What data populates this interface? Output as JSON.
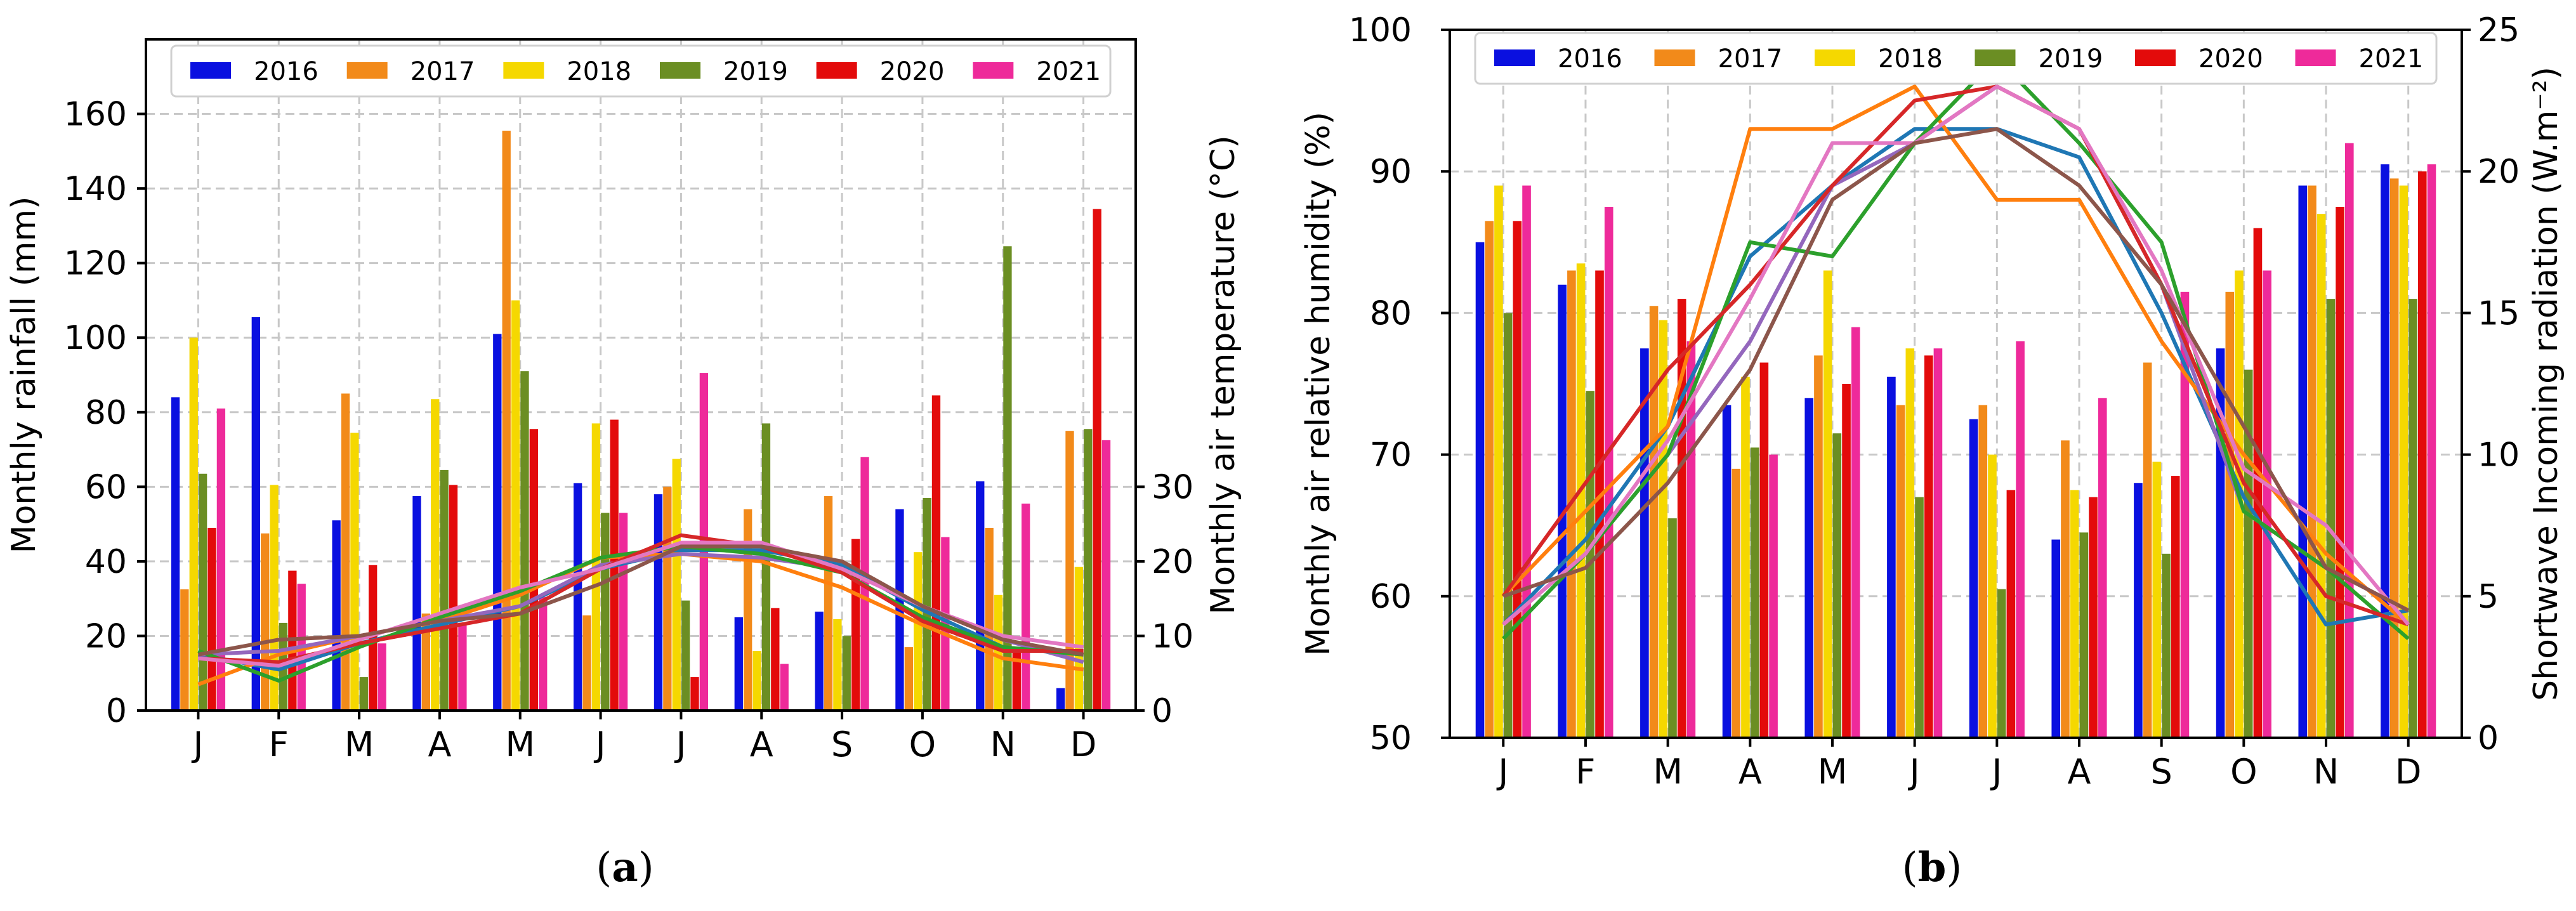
{
  "captions": {
    "a": "a",
    "b": "b"
  },
  "chart_data": [
    {
      "type": "bar",
      "id": "a",
      "categories": [
        "J",
        "F",
        "M",
        "A",
        "M",
        "J",
        "J",
        "A",
        "S",
        "O",
        "N",
        "D"
      ],
      "ylabel": "Monthly rainfall (mm)",
      "ylim": [
        0,
        180
      ],
      "yticks": [
        0,
        20,
        40,
        60,
        80,
        100,
        120,
        140,
        160
      ],
      "y2label": "Monthly air temperature (°C)",
      "y2lim": [
        0,
        90
      ],
      "y2ticks": [
        0,
        10,
        20,
        30
      ],
      "grid": true,
      "legend_position": "top",
      "colors": [
        "#0a10e0",
        "#f28a1a",
        "#f5d800",
        "#6b8e23",
        "#e30b0b",
        "#ee2a9a"
      ],
      "series": [
        {
          "name": "2016",
          "values": [
            84,
            105.5,
            51,
            57.5,
            101,
            61,
            58,
            25,
            26.5,
            54,
            61.5,
            6
          ]
        },
        {
          "name": "2017",
          "values": [
            32.5,
            47.5,
            85,
            26,
            155.5,
            25.5,
            60,
            54,
            57.5,
            17,
            49,
            75
          ]
        },
        {
          "name": "2018",
          "values": [
            100,
            60.5,
            74.5,
            83.5,
            110,
            77,
            67.5,
            16,
            24.5,
            42.5,
            31,
            38.5
          ]
        },
        {
          "name": "2019",
          "values": [
            63.5,
            23.5,
            9,
            64.5,
            91,
            53,
            29.5,
            77,
            20,
            57,
            124.5,
            75.5
          ]
        },
        {
          "name": "2020",
          "values": [
            49,
            37.5,
            39,
            60.5,
            75.5,
            78,
            9,
            27.5,
            46,
            84.5,
            17,
            134.5
          ]
        },
        {
          "name": "2021",
          "values": [
            81,
            34,
            18,
            23.5,
            30.5,
            53,
            90.5,
            12.5,
            68,
            46.5,
            55.5,
            72.5
          ]
        }
      ],
      "line_series": [
        {
          "name": "2016",
          "values": [
            7.5,
            5.5,
            9,
            11.5,
            14,
            19,
            21.5,
            21.5,
            19.5,
            13.5,
            8.5,
            7.5
          ]
        },
        {
          "name": "2017",
          "values": [
            3.5,
            7.5,
            10,
            12,
            15.5,
            20.5,
            21,
            20,
            16.5,
            11.5,
            7,
            5.5
          ]
        },
        {
          "name": "2018",
          "values": [
            7.5,
            8,
            10,
            12,
            14,
            19.5,
            21,
            20.5,
            19,
            14,
            9.5,
            6.5
          ]
        },
        {
          "name": "2019",
          "values": [
            8,
            4,
            8.5,
            12.5,
            16,
            20.5,
            22,
            21,
            18.5,
            12.5,
            8.5,
            7.5
          ]
        },
        {
          "name": "2020",
          "values": [
            7,
            6.5,
            9,
            11,
            13,
            19,
            23.5,
            22,
            18.5,
            12,
            8,
            8
          ]
        },
        {
          "name": "2021",
          "values": [
            7,
            6,
            9.5,
            13,
            16.5,
            19,
            22.5,
            22.5,
            19,
            14,
            10,
            8.5
          ]
        },
        {
          "name": "",
          "values": [
            7.5,
            9.5,
            10,
            12,
            13,
            17,
            22,
            22,
            20,
            14,
            9.5,
            7.5
          ]
        }
      ]
    },
    {
      "type": "bar",
      "id": "b",
      "categories": [
        "J",
        "F",
        "M",
        "A",
        "M",
        "J",
        "J",
        "A",
        "S",
        "O",
        "N",
        "D"
      ],
      "ylabel": "Monthly air relative humidity (%)",
      "ylim": [
        50,
        100
      ],
      "yticks": [
        50,
        60,
        70,
        80,
        90,
        100
      ],
      "y2label": "Shortwave Incoming radiation (W.m⁻²)",
      "y2lim": [
        0,
        25
      ],
      "y2ticks": [
        0,
        5,
        10,
        15,
        20,
        25
      ],
      "grid": true,
      "legend_position": "top",
      "colors": [
        "#0a10e0",
        "#f28a1a",
        "#f5d800",
        "#6b8e23",
        "#e30b0b",
        "#ee2a9a"
      ],
      "series": [
        {
          "name": "2016",
          "values": [
            85,
            82,
            77.5,
            73.5,
            74,
            75.5,
            72.5,
            64,
            68,
            77.5,
            89,
            90.5
          ]
        },
        {
          "name": "2017",
          "values": [
            86.5,
            83,
            80.5,
            69,
            77,
            73.5,
            73.5,
            71,
            76.5,
            81.5,
            89,
            89.5
          ]
        },
        {
          "name": "2018",
          "values": [
            89,
            83.5,
            79.5,
            75.5,
            83,
            77.5,
            70,
            67.5,
            69.5,
            83,
            87,
            89
          ]
        },
        {
          "name": "2019",
          "values": [
            80,
            74.5,
            65.5,
            70.5,
            71.5,
            67,
            60.5,
            64.5,
            63,
            76,
            81,
            81
          ]
        },
        {
          "name": "2020",
          "values": [
            86.5,
            83,
            81,
            76.5,
            75,
            77,
            67.5,
            67,
            68.5,
            86,
            87.5,
            90
          ]
        },
        {
          "name": "2021",
          "values": [
            89,
            87.5,
            78,
            70,
            79,
            77.5,
            78,
            74,
            81.5,
            83,
            92,
            90.5
          ]
        }
      ],
      "line_series": [
        {
          "name": "2016",
          "values": [
            4,
            7,
            11,
            17,
            19.5,
            21.5,
            21.5,
            20.5,
            15,
            8.5,
            4,
            4.5
          ]
        },
        {
          "name": "2017",
          "values": [
            5,
            8,
            11,
            21.5,
            21.5,
            23,
            19,
            19,
            14,
            10,
            6.5,
            4
          ]
        },
        {
          "name": "2018",
          "values": [
            4,
            6.5,
            10,
            14,
            19.5,
            21,
            23,
            21.5,
            16,
            8,
            6,
            4.5
          ]
        },
        {
          "name": "2019",
          "values": [
            3.5,
            6.5,
            10,
            17.5,
            17,
            21,
            24,
            21,
            17.5,
            8,
            6,
            3.5
          ]
        },
        {
          "name": "2020",
          "values": [
            5,
            9,
            13,
            16,
            19.5,
            22.5,
            23,
            21.5,
            16,
            9,
            5,
            4
          ]
        },
        {
          "name": "2021",
          "values": [
            4,
            6.5,
            10.5,
            15.5,
            21,
            21,
            23,
            21.5,
            16.5,
            9.5,
            7.5,
            4
          ]
        },
        {
          "name": "",
          "values": [
            5,
            6,
            9,
            13,
            19,
            21,
            21.5,
            19.5,
            16,
            11,
            6,
            4.5
          ]
        }
      ]
    }
  ]
}
